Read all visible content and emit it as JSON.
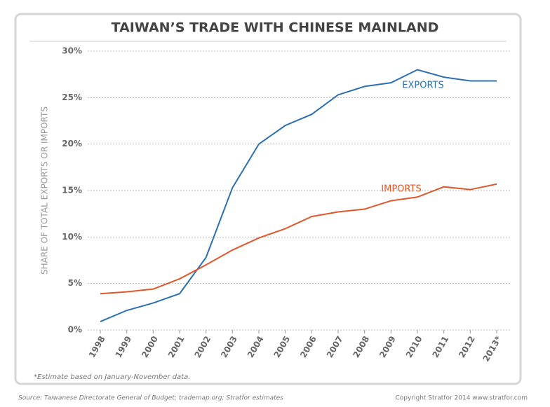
{
  "chart_data": {
    "type": "line",
    "title": "TAIWAN’S TRADE WITH CHINESE MAINLAND",
    "y_label": "SHARE OF TOTAL EXPORTS OR IMPORTS",
    "footnote": "*Estimate based on January-November data.",
    "source": "Source: Taiwanese Directorate General of Budget; trademap.org; Stratfor estimates",
    "copyright": "Copyright Stratfor 2014   www.stratfor.com",
    "categories": [
      "1998",
      "1999",
      "2000",
      "2001",
      "2002",
      "2003",
      "2004",
      "2005",
      "2006",
      "2007",
      "2008",
      "2009",
      "2010",
      "2011",
      "2012",
      "2013*"
    ],
    "series": [
      {
        "name": "EXPORTS",
        "color": "#2a6fb5",
        "values": [
          0.9,
          2.1,
          2.9,
          3.9,
          7.8,
          15.3,
          20.0,
          22.0,
          23.2,
          25.3,
          26.2,
          26.6,
          28.0,
          27.2,
          26.8,
          26.8
        ]
      },
      {
        "name": "IMPORTS",
        "color": "#e0572a",
        "values": [
          3.9,
          4.1,
          4.4,
          5.5,
          7.0,
          8.6,
          9.9,
          10.9,
          12.2,
          12.7,
          13.0,
          13.9,
          14.3,
          15.4,
          15.1,
          15.7
        ]
      }
    ],
    "ylim": [
      0,
      30
    ],
    "yticks": [
      {
        "value": 0,
        "label": "0%"
      },
      {
        "value": 5,
        "label": "5%"
      },
      {
        "value": 10,
        "label": "10%"
      },
      {
        "value": 15,
        "label": "15%"
      },
      {
        "value": 20,
        "label": "20%"
      },
      {
        "value": 25,
        "label": "25%"
      },
      {
        "value": 30,
        "label": "30%"
      }
    ],
    "grid": true
  }
}
